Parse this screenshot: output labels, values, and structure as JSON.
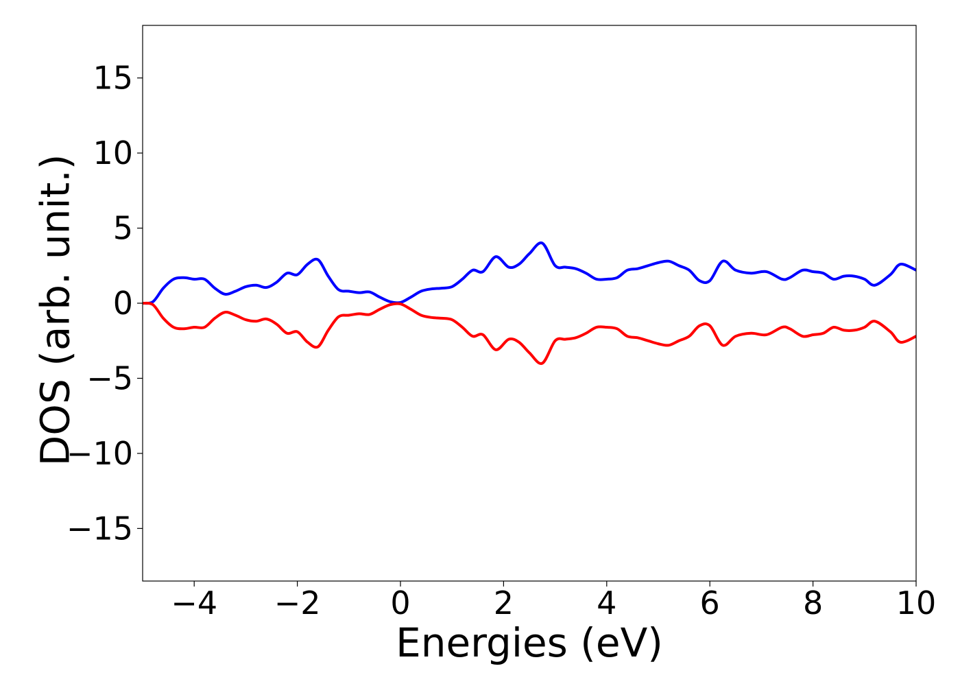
{
  "chart_data": {
    "type": "line",
    "title": "",
    "xlabel": "Energies (eV)",
    "ylabel": "DOS (arb. unit.)",
    "xlim": [
      -5,
      10
    ],
    "ylim": [
      -18.5,
      18.5
    ],
    "xticks": [
      -4,
      -2,
      0,
      2,
      4,
      6,
      8,
      10
    ],
    "yticks": [
      15,
      10,
      5,
      0,
      -5,
      -10,
      -15
    ],
    "xtick_labels": [
      "−4",
      "−2",
      "0",
      "2",
      "4",
      "6",
      "8",
      "10"
    ],
    "ytick_labels": [
      "15",
      "10",
      "5",
      "0",
      "−5",
      "−10",
      "−15"
    ],
    "grid": false,
    "legend": "none",
    "series": [
      {
        "color": "#0000ff",
        "x": [
          -5.0,
          -4.8,
          -4.6,
          -4.4,
          -4.2,
          -4.0,
          -3.8,
          -3.6,
          -3.4,
          -3.2,
          -3.0,
          -2.8,
          -2.6,
          -2.4,
          -2.2,
          -2.0,
          -1.8,
          -1.6,
          -1.4,
          -1.2,
          -1.0,
          -0.8,
          -0.6,
          -0.4,
          -0.2,
          0.0,
          0.2,
          0.4,
          0.6,
          0.8,
          1.0,
          1.2,
          1.4,
          1.6,
          1.85,
          2.1,
          2.3,
          2.5,
          2.75,
          3.0,
          3.2,
          3.4,
          3.6,
          3.8,
          4.0,
          4.2,
          4.4,
          4.6,
          4.8,
          5.0,
          5.2,
          5.4,
          5.6,
          5.8,
          6.0,
          6.25,
          6.5,
          6.8,
          7.1,
          7.4,
          7.55,
          7.8,
          8.0,
          8.2,
          8.4,
          8.6,
          8.8,
          9.0,
          9.2,
          9.5,
          9.7,
          10.0
        ],
        "y": [
          0.0,
          0.1,
          1.0,
          1.6,
          1.7,
          1.6,
          1.6,
          1.0,
          0.6,
          0.8,
          1.1,
          1.2,
          1.05,
          1.4,
          2.0,
          1.9,
          2.6,
          2.9,
          1.8,
          0.9,
          0.8,
          0.7,
          0.75,
          0.4,
          0.1,
          0.05,
          0.4,
          0.8,
          0.95,
          1.0,
          1.1,
          1.6,
          2.2,
          2.1,
          3.1,
          2.4,
          2.6,
          3.3,
          4.0,
          2.5,
          2.4,
          2.3,
          2.0,
          1.6,
          1.6,
          1.7,
          2.2,
          2.3,
          2.5,
          2.7,
          2.8,
          2.5,
          2.2,
          1.5,
          1.5,
          2.8,
          2.2,
          2.0,
          2.1,
          1.6,
          1.7,
          2.2,
          2.1,
          2.0,
          1.6,
          1.8,
          1.8,
          1.6,
          1.2,
          1.9,
          2.6,
          2.2
        ]
      },
      {
        "color": "#ff0000",
        "x": [
          -5.0,
          -4.8,
          -4.6,
          -4.4,
          -4.2,
          -4.0,
          -3.8,
          -3.6,
          -3.4,
          -3.2,
          -3.0,
          -2.8,
          -2.6,
          -2.4,
          -2.2,
          -2.0,
          -1.8,
          -1.6,
          -1.4,
          -1.2,
          -1.0,
          -0.8,
          -0.6,
          -0.4,
          -0.2,
          0.0,
          0.2,
          0.4,
          0.6,
          0.8,
          1.0,
          1.2,
          1.4,
          1.6,
          1.85,
          2.1,
          2.3,
          2.5,
          2.75,
          3.0,
          3.2,
          3.4,
          3.6,
          3.8,
          4.0,
          4.2,
          4.4,
          4.6,
          4.8,
          5.0,
          5.2,
          5.4,
          5.6,
          5.8,
          6.0,
          6.25,
          6.5,
          6.8,
          7.1,
          7.4,
          7.55,
          7.8,
          8.0,
          8.2,
          8.4,
          8.6,
          8.8,
          9.0,
          9.2,
          9.5,
          9.7,
          10.0
        ],
        "y": [
          0.0,
          -0.1,
          -1.0,
          -1.6,
          -1.7,
          -1.6,
          -1.6,
          -1.0,
          -0.6,
          -0.8,
          -1.1,
          -1.2,
          -1.05,
          -1.4,
          -2.0,
          -1.9,
          -2.6,
          -2.9,
          -1.8,
          -0.9,
          -0.8,
          -0.7,
          -0.75,
          -0.4,
          -0.1,
          -0.05,
          -0.4,
          -0.8,
          -0.95,
          -1.0,
          -1.1,
          -1.6,
          -2.2,
          -2.1,
          -3.1,
          -2.4,
          -2.6,
          -3.3,
          -4.0,
          -2.5,
          -2.4,
          -2.3,
          -2.0,
          -1.6,
          -1.6,
          -1.7,
          -2.2,
          -2.3,
          -2.5,
          -2.7,
          -2.8,
          -2.5,
          -2.2,
          -1.5,
          -1.5,
          -2.8,
          -2.2,
          -2.0,
          -2.1,
          -1.6,
          -1.7,
          -2.2,
          -2.1,
          -2.0,
          -1.6,
          -1.8,
          -1.8,
          -1.6,
          -1.2,
          -1.9,
          -2.6,
          -2.2
        ]
      }
    ]
  }
}
